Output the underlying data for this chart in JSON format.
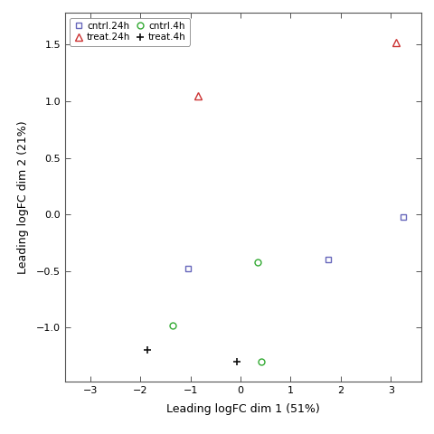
{
  "title": "",
  "xlabel": "Leading logFC dim 1 (51%)",
  "ylabel": "Leading logFC dim 2 (21%)",
  "xlim": [
    -3.5,
    3.6
  ],
  "ylim": [
    -1.48,
    1.78
  ],
  "xticks": [
    -3,
    -2,
    -1,
    0,
    1,
    2,
    3
  ],
  "yticks": [
    -1.0,
    -0.5,
    0.0,
    0.5,
    1.0,
    1.5
  ],
  "groups": {
    "cntrl.24h": {
      "x": [
        -1.05,
        1.75,
        3.25
      ],
      "y": [
        -0.48,
        -0.4,
        -0.02
      ],
      "color": "#6666bb",
      "marker": "s",
      "markersize": 5,
      "fillstyle": "none",
      "linewidth": 1.0
    },
    "treat.24h": {
      "x": [
        -0.85,
        3.1
      ],
      "y": [
        1.05,
        1.52
      ],
      "color": "#cc3333",
      "marker": "^",
      "markersize": 6,
      "fillstyle": "none",
      "linewidth": 1.0
    },
    "cntrl.4h": {
      "x": [
        -1.35,
        0.35,
        0.42
      ],
      "y": [
        -0.98,
        -0.42,
        -1.3
      ],
      "color": "#33aa33",
      "marker": "o",
      "markersize": 5,
      "fillstyle": "none",
      "linewidth": 1.0
    },
    "treat.4h": {
      "x": [
        -1.85,
        -0.08
      ],
      "y": [
        -1.2,
        -1.3
      ],
      "color": "#111111",
      "marker": "+",
      "markersize": 6,
      "fillstyle": "full",
      "linewidth": 1.2
    }
  },
  "background_color": "#ffffff",
  "legend_order": [
    "cntrl.24h",
    "treat.24h",
    "cntrl.4h",
    "treat.4h"
  ]
}
